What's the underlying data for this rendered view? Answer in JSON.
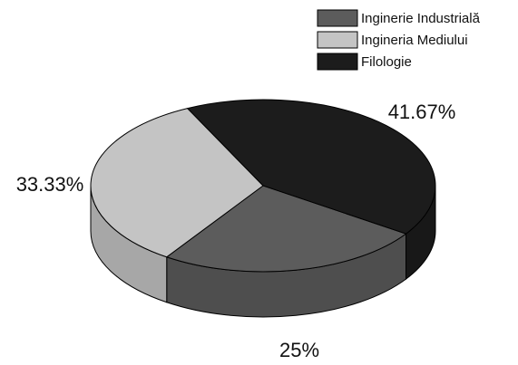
{
  "chart_data": {
    "type": "pie",
    "categories": [
      "Inginerie Industrială",
      "Ingineria Mediului",
      "Filologie"
    ],
    "values": [
      25,
      33.33,
      41.67
    ],
    "value_labels": [
      "25%",
      "33.33%",
      "41.67%"
    ],
    "colors": [
      "#5c5c5c",
      "#c4c4c4",
      "#1c1c1c"
    ],
    "legend": "top-right"
  }
}
